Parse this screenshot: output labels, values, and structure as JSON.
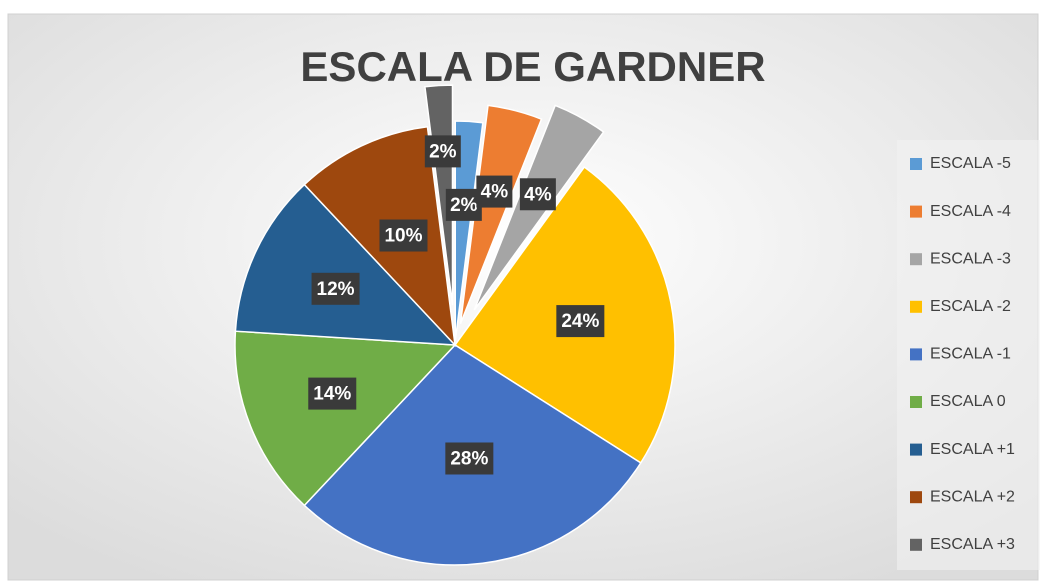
{
  "chart_data": {
    "type": "pie",
    "title": "ESCALA DE GARDNER",
    "categories": [
      "ESCALA -5",
      "ESCALA -4",
      "ESCALA -3",
      "ESCALA -2",
      "ESCALA -1",
      "ESCALA 0",
      "ESCALA +1",
      "ESCALA +2",
      "ESCALA +3"
    ],
    "values": [
      2,
      4,
      4,
      24,
      28,
      14,
      12,
      10,
      2
    ],
    "value_labels": [
      "2%",
      "4%",
      "4%",
      "24%",
      "28%",
      "14%",
      "12%",
      "10%",
      "2%"
    ],
    "colors": [
      "#5b9bd5",
      "#ed7d31",
      "#a5a5a5",
      "#ffc000",
      "#4472c4",
      "#70ad47",
      "#255e91",
      "#9e480e",
      "#636363"
    ],
    "legend": "right"
  }
}
